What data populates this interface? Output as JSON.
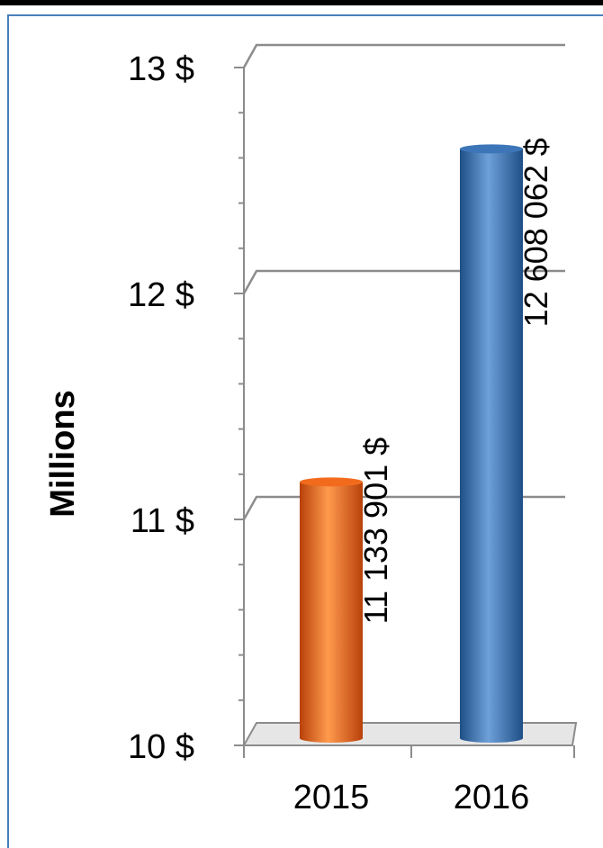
{
  "chart_data": {
    "type": "bar",
    "categories": [
      "2015",
      "2016"
    ],
    "values": [
      11133901,
      12608062
    ],
    "value_labels": [
      "11 133 901 $",
      "12 608 062 $"
    ],
    "bar_colors": [
      "#f26b1d",
      "#3d76b8"
    ],
    "ylabel": "Millions",
    "y_tick_labels": [
      "10 $",
      "11 $",
      "12 $",
      "13 $"
    ],
    "y_tick_values": [
      10,
      11,
      12,
      13
    ],
    "ylim": [
      10,
      13
    ],
    "y_unit_multiplier": 1000000,
    "grid": true,
    "legend": "none",
    "style": "3d-cylinder"
  }
}
